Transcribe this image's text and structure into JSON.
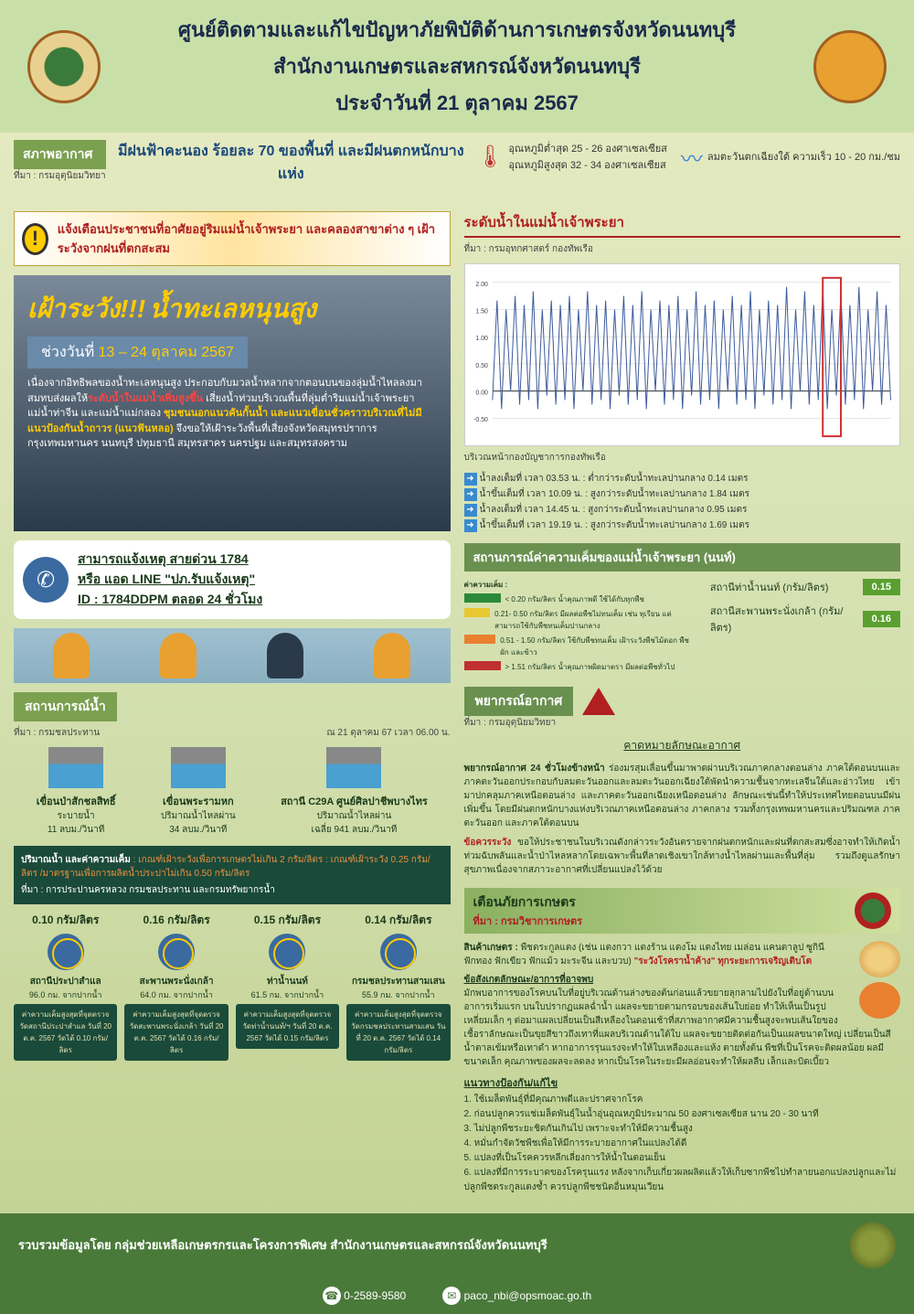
{
  "header": {
    "line1": "ศูนย์ติดตามและแก้ไขปัญหาภัยพิบัติด้านการเกษตรจังหวัดนนทบุรี",
    "line2": "สำนักงานเกษตรและสหกรณ์จังหวัดนนทบุรี",
    "line3": "ประจำวันที่ 21 ตุลาคม 2567"
  },
  "weather": {
    "tag": "สภาพอากาศ",
    "source": "ที่มา : กรมอุตุนิยมวิทยา",
    "main": "มีฝนฟ้าคะนอง ร้อยละ 70 ของพื้นที่ และมีฝนตกหนักบางแห่ง",
    "temp_low": "อุณหภูมิต่ำสุด 25 - 26 องศาเซลเซียส",
    "temp_high": "อุณหภูมิสูงสุด 32 - 34 องศาเซลเซียส",
    "wind": "ลมตะวันตกเฉียงใต้ ความเร็ว 10 - 20 กม./ชม"
  },
  "alert": {
    "text": "แจ้งเตือนประชาชนที่อาศัยอยู่ริมแม่น้ำเจ้าพระยา และคลองสาขาต่าง ๆ เฝ้าระวังจากฝนที่ตกสะสม"
  },
  "warning": {
    "title1": "เฝ้าระวัง!!!",
    "title2": "น้ำทะเลหนุนสูง",
    "date_prefix": "ช่วงวันที่",
    "date_range": "13 – 24 ตุลาคม 2567",
    "body": "เนื่องจากอิทธิพลของน้ำทะเลหนุนสูง ประกอบกับมวลน้ำหลากจากตอนบนของลุ่มน้ำไหลลงมาสมทบส่งผลให้<span class='red'>ระดับน้ำในแม่น้ำเพิ่มสูงขึ้น</span> เสี่ยงน้ำท่วมบริเวณพื้นที่ลุ่มต่ำริมแม่น้ำเจ้าพระยา แม่น้ำท่าจีน และแม่น้ำแม่กลอง <span class='yellow'>ชุมชนนอกแนวคันกั้นน้ำ และแนวเขื่อนชั่วคราวบริเวณที่ไม่มีแนวป้องกันน้ำถาวร (แนวฟันหลอ)</span> จึงขอให้เฝ้าระวังพื้นที่เสี่ยงจังหวัดสมุทรปราการ กรุงเทพมหานคร นนทบุรี ปทุมธานี สมุทรสาคร นครปฐม และสมุทรสงคราม"
  },
  "hotline": {
    "line1": "สามารถแจ้งเหตุ สายด่วน 1784",
    "line2": "หรือ แอด LINE \"ปภ.รับแจ้งเหตุ\"",
    "line3": "ID : 1784DDPM ตลอด 24 ชั่วโมง"
  },
  "water": {
    "tag": "สถานการณ์น้ำ",
    "source": "ที่มา : กรมชลประทาน",
    "date": "ณ 21 ตุลาคม 67  เวลา 06.00 น.",
    "dams": [
      {
        "name": "เขื่อนป่าสักชลสิทธิ์",
        "detail": "ระบายน้ำ",
        "val": "11 ลบม./วินาที"
      },
      {
        "name": "เขื่อนพระรามหก",
        "detail": "ปริมาณน้ำไหลผ่าน",
        "val": "34 ลบม./วินาที"
      },
      {
        "name": "สถานี C29A ศูนย์ศิลปาชีพบางไทร",
        "detail": "ปริมาณน้ำไหลผ่าน",
        "val": "เฉลี่ย 941 ลบม./วินาที"
      }
    ],
    "salinity_header": "ปริมาณน้ำ และค่าความเค็ม",
    "salinity_criteria": ": เกณฑ์เฝ้าระวังเพื่อการเกษตรไม่เกิน 2 กรัม/ลิตร : เกณฑ์เฝ้าระวัง 0.25 กรัม/ลิตร /มาตรฐานเพื่อการผลิตน้ำประปาไม่เกิน 0.50 กรัม/ลิตร",
    "salinity_source": "ที่มา : การประปานครหลวง กรมชลประทาน และกรมทรัพยากรน้ำ",
    "stations": [
      {
        "val": "0.10 กรัม/ลิตร",
        "name": "สถานีประปาสำแล",
        "dist": "96.0 กม. จากปากน้ำ",
        "note": "ค่าความเค็มสูงสุดที่จุดตรวจวัดสถานีประปาสำแล วันที่ 20 ต.ค. 2567 วัดได้ 0.10 กรัม/ลิตร"
      },
      {
        "val": "0.16 กรัม/ลิตร",
        "name": "สะพานพระนั่งเกล้า",
        "dist": "64.0 กม. จากปากน้ำ",
        "note": "ค่าความเค็มสูงสุดที่จุดตรวจวัดสะพานพระนั่งเกล้า วันที่ 20 ต.ค. 2567 วัดได้ 0.16 กรัม/ลิตร"
      },
      {
        "val": "0.15 กรัม/ลิตร",
        "name": "ท่าน้ำนนท์",
        "dist": "61.5 กม. จากปากน้ำ",
        "note": "ค่าความเค็มสูงสุดที่จุดตรวจวัดท่าน้ำนนท์/ฯ วันที่ 20 ต.ค. 2567 วัดได้ 0.15 กรัม/ลิตร"
      },
      {
        "val": "0.14 กรัม/ลิตร",
        "name": "กรมชลประทานสามเสน",
        "dist": "55.9 กม. จากปากน้ำ",
        "note": "ค่าความเค็มสูงสุดที่จุดตรวจวัดกรมชลประทานสามเสน วันที่ 20 ต.ค. 2567 วัดได้ 0.14 กรัม/ลิตร"
      }
    ]
  },
  "river": {
    "title": "ระดับน้ำในแม่น้ำเจ้าพระยา",
    "source": "ที่มา : กรมอุทกศาสตร์ กองทัพเรือ",
    "caption": "บริเวณหน้ากองบัญชาการกองทัพเรือ",
    "notes": [
      "น้ำลงเต็มที่ เวลา 03.53 น. : ต่ำกว่าระดับน้ำทะเลปานกลาง 0.14 เมตร",
      "น้ำขึ้นเต็มที่ เวลา 10.09 น. : สูงกว่าระดับน้ำทะเลปานกลาง 1.84 เมตร",
      "น้ำลงเต็มที่ เวลา 14.45 น. : สูงกว่าระดับน้ำทะเลปานกลาง 0.95 เมตร",
      "น้ำขึ้นเต็มที่ เวลา 19.19 น. : สูงกว่าระดับน้ำทะเลปานกลาง 1.69 เมตร"
    ],
    "chart": {
      "ylim": [
        -1.0,
        2.5
      ],
      "yticks": [
        -1.0,
        -0.5,
        0.0,
        0.5,
        1.0,
        1.5,
        2.0
      ],
      "line_color": "#3a5a9a",
      "highlight_color": "#d03030",
      "grid_color": "#cccccc",
      "background": "#ffffff"
    }
  },
  "salinity_status": {
    "title": "สถานการณ์ค่าความเค็มของแม่น้ำเจ้าพระยา (นนท์)",
    "legend_title": "ค่าความเค็ม :",
    "legend": [
      {
        "color": "#2a8a3a",
        "text": "< 0.20 กรัม/ลิตร น้ำคุณภาพดี ใช้ได้กับทุกพืช"
      },
      {
        "color": "#e8c830",
        "text": "0.21- 0.50 กรัม/ลิตร มีผลต่อพืชไม่ทนเค็ม เช่น ทุเรียน แต่สามารถใช้กับพืชทนเค็มปานกลาง"
      },
      {
        "color": "#e88030",
        "text": "0.51 - 1.50 กรัม/ลิตร ใช้กับพืชทนเค็ม เฝ้าระวังพืชไม้ดอก พืชผัก และข้าว"
      },
      {
        "color": "#c03030",
        "text": "> 1.51 กรัม/ลิตร น้ำคุณภาพผิดมาตรา มีผลต่อพืชทั่วไป"
      }
    ],
    "stations": [
      {
        "name": "สถานีท่าน้ำนนท์ (กรัม/ลิตร)",
        "val": "0.15"
      },
      {
        "name": "สถานีสะพานพระนั่งเกล้า (กรัม/ลิตร)",
        "val": "0.16"
      }
    ]
  },
  "forecast": {
    "title": "พยากรณ์อากาศ",
    "source": "ที่มา : กรมอุตุนิยมวิทยา",
    "subtitle": "คาดหมายลักษณะอากาศ",
    "para1": "พยากรณ์อากาศ 24 ชั่วโมงข้างหน้า ร่องมรสุมเลื่อนขึ้นมาพาดผ่านบริเวณภาคกลางตอนล่าง ภาคใต้ตอนบนและภาคตะวันออกประกอบกับลมตะวันออกและลมตะวันออกเฉียงใต้พัดนำความชื้นจากทะเลจีนใต้และอ่าวไทย เข้ามาปกคลุมภาคเหนือตอนล่าง และภาคตะวันออกเฉียงเหนือตอนล่าง ลักษณะเช่นนี้ทำให้ประเทศไทยตอนบนมีฝนเพิ่มขึ้น โดยมีฝนตกหนักบางแห่งบริเวณภาคเหนือตอนล่าง ภาคกลาง รวมทั้งกรุงเทพมหานครและปริมณฑล ภาคตะวันออก และภาคใต้ตอนบน",
    "para2_label": "ข้อควรระวัง",
    "para2": "ขอให้ประชาชนในบริเวณดังกล่าวระวังอันตรายจากฝนตกหนักและฝนที่ตกสะสมซึ่งอาจทำให้เกิดน้ำท่วมฉับพลันและน้ำป่าไหลหลากโดยเฉพาะพื้นที่ลาดเชิงเขาใกล้ทางน้ำไหลผ่านและพื้นที่ลุ่ม รวมถึงดูแลรักษาสุขภาพเนื่องจากสภาวะอากาศที่เปลี่ยนแปลงไว้ด้วย"
  },
  "agri": {
    "title": "เตือนภัยการเกษตร",
    "source": "ที่มา : กรมวิชาการเกษตร",
    "product_label": "สินค้าเกษตร :",
    "product": "พืชตระกูลแตง (เช่น แตงกวา แตงร้าน แตงโม แตงไทย เมล่อน แคนตาลูป ซูกินี ฟักทอง ฟักเขียว ฟักแม้ว มะระจีน และบวบ)",
    "disease": "\"ระวังโรคราน้ำค้าง\" ทุกระยะการเจริญเติบโต",
    "symptoms_label": "ข้อสังเกตลักษณะ/อาการที่อาจพบ",
    "symptoms": "มักพบอาการของโรคบนใบที่อยู่บริเวณด้านล่างของต้นก่อนแล้วขยายลุกลามไปยังใบที่อยู่ด้านบนอาการเริ่มแรก บนใบปรากฏแผลฉ่ำน้ำ แผลจะขยายตามกรอบของเส้นใบย่อย ทำให้เห็นเป็นรูปเหลี่ยมเล็ก ๆ ต่อมาแผลเปลี่ยนเป็นสีเหลืองในตอนเช้าที่สภาพอากาศมีความชื้นสูงจะพบเส้นใยของเชื้อราลักษณะเป็นขุยสีขาวถึงเทาที่แผลบริเวณด้านใต้ใบ แผลจะขยายติดต่อกันเป็นแผลขนาดใหญ่ เปลี่ยนเป็นสีน้ำตาลเข้มหรือเทาดำ หากอาการรุนแรงจะทำให้ใบเหลืองและแห้ง ตายทั้งต้น พืชที่เป็นโรคจะติดผลน้อย ผลมีขนาดเล็ก คุณภาพของผลจะลดลง หากเป็นโรคในระยะมีผลอ่อนจะทำให้ผลลีบ เล็กและบิดเบี้ยว",
    "prevention_label": "แนวทางป้องกัน/แก้ไข",
    "prevention": [
      "1. ใช้เมล็ดพันธุ์ที่มีคุณภาพดีและปราศจากโรค",
      "2. ก่อนปลูกควรแช่เมล็ดพันธุ์ในน้ำอุ่นอุณหภูมิประมาณ 50 องศาเซลเซียส นาน 20 - 30 นาที",
      "3. ไม่ปลูกพืชระยะชิดกันเกินไป เพราะจะทำให้มีความชื้นสูง",
      "4. หมั่นกำจัดวัชพืชเพื่อให้มีการระบายอากาศในแปลงได้ดี",
      "5. แปลงที่เป็นโรคควรหลีกเลี่ยงการให้น้ำในตอนเย็น",
      "6. แปลงที่มีการระบาดของโรครุนแรง หลังจากเก็บเกี่ยวผลผลิตแล้วให้เก็บซากพืชไปทำลายนอกแปลงปลูกและไม่ปลูกพืชตระกูลแตงซ้ำ ควรปลูกพืชชนิดอื่นหมุนเวียน"
    ]
  },
  "footer": {
    "org": "รวบรวมข้อมูลโดย กลุ่มช่วยเหลือเกษตรกรและโครงการพิเศษ สำนักงานเกษตรและสหกรณ์จังหวัดนนทบุรี",
    "phone": "0-2589-9580",
    "email": "paco_nbi@opsmoac.go.th"
  }
}
